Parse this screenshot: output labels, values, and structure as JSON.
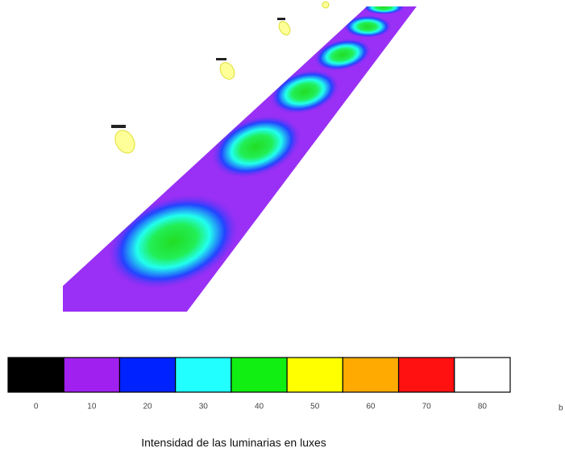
{
  "legend": {
    "items": [
      {
        "label": 0,
        "color": "#000000"
      },
      {
        "label": 10,
        "color": "#a020f0"
      },
      {
        "label": 20,
        "color": "#0022ff"
      },
      {
        "label": 30,
        "color": "#22ffff"
      },
      {
        "label": 40,
        "color": "#11ee11"
      },
      {
        "label": 50,
        "color": "#ffff00"
      },
      {
        "label": 60,
        "color": "#ffaa00"
      },
      {
        "label": 70,
        "color": "#ff1111"
      },
      {
        "label": 80,
        "color": "#ffffff"
      }
    ]
  },
  "caption": "Intensidad de las luminarias  en luxes",
  "panel_label": "b"
}
